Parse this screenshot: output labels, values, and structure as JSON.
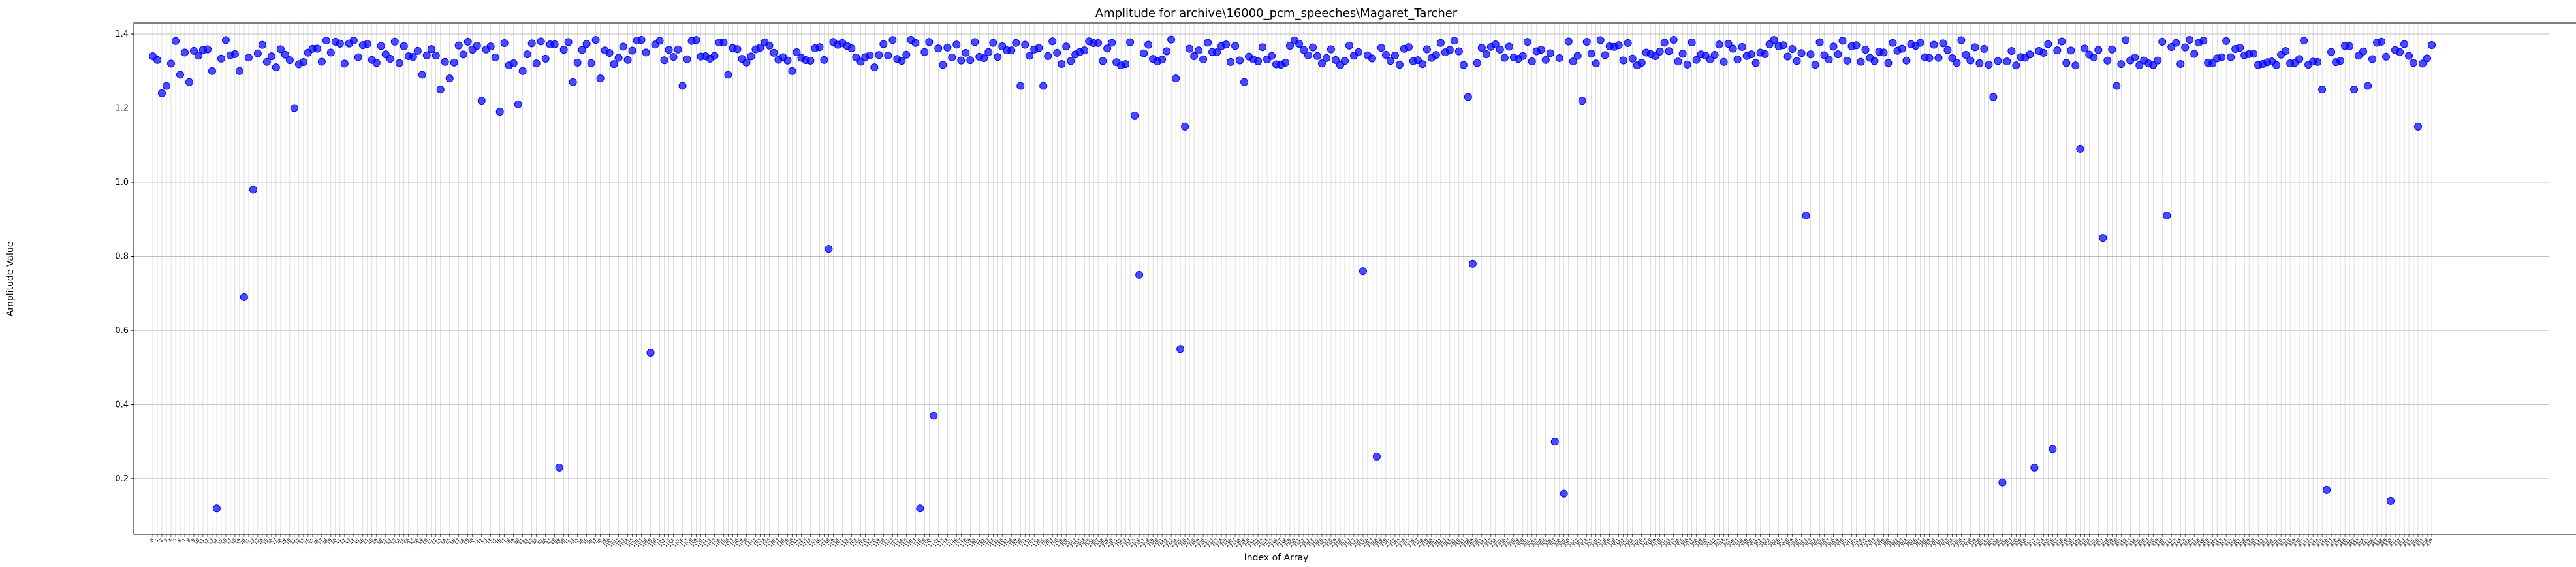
{
  "chart_data": {
    "type": "scatter",
    "title": "Amplitude for archive\\16000_pcm_speeches\\Magaret_Tarcher",
    "xlabel": "Index of Array",
    "ylabel": "Amplitude Value",
    "ylim": [
      0.05,
      1.43
    ],
    "xlim": [
      -1,
      500
    ],
    "yticks": [
      0.2,
      0.4,
      0.6,
      0.8,
      1.0,
      1.2,
      1.4
    ],
    "ytick_labels": [
      "0.2",
      "0.4",
      "0.6",
      "0.8",
      "1.0",
      "1.2",
      "1.4"
    ],
    "grid": true,
    "marker_color": "#0000ff",
    "n_points": 500,
    "baseline": 1.35,
    "outliers": [
      {
        "x": 0,
        "y": 1.34
      },
      {
        "x": 1,
        "y": 1.33
      },
      {
        "x": 2,
        "y": 1.24
      },
      {
        "x": 3,
        "y": 1.26
      },
      {
        "x": 4,
        "y": 1.32
      },
      {
        "x": 6,
        "y": 1.29
      },
      {
        "x": 8,
        "y": 1.27
      },
      {
        "x": 13,
        "y": 1.3
      },
      {
        "x": 14,
        "y": 0.12
      },
      {
        "x": 19,
        "y": 1.3
      },
      {
        "x": 20,
        "y": 0.69
      },
      {
        "x": 22,
        "y": 0.98
      },
      {
        "x": 27,
        "y": 1.31
      },
      {
        "x": 31,
        "y": 1.2
      },
      {
        "x": 42,
        "y": 1.32
      },
      {
        "x": 59,
        "y": 1.29
      },
      {
        "x": 63,
        "y": 1.25
      },
      {
        "x": 65,
        "y": 1.28
      },
      {
        "x": 72,
        "y": 1.22
      },
      {
        "x": 76,
        "y": 1.19
      },
      {
        "x": 80,
        "y": 1.21
      },
      {
        "x": 81,
        "y": 1.3
      },
      {
        "x": 89,
        "y": 0.23
      },
      {
        "x": 92,
        "y": 1.27
      },
      {
        "x": 98,
        "y": 1.28
      },
      {
        "x": 109,
        "y": 0.54
      },
      {
        "x": 116,
        "y": 1.26
      },
      {
        "x": 126,
        "y": 1.29
      },
      {
        "x": 140,
        "y": 1.3
      },
      {
        "x": 148,
        "y": 0.82
      },
      {
        "x": 158,
        "y": 1.31
      },
      {
        "x": 168,
        "y": 0.12
      },
      {
        "x": 171,
        "y": 0.37
      },
      {
        "x": 190,
        "y": 1.26
      },
      {
        "x": 195,
        "y": 1.26
      },
      {
        "x": 215,
        "y": 1.18
      },
      {
        "x": 216,
        "y": 0.75
      },
      {
        "x": 224,
        "y": 1.28
      },
      {
        "x": 225,
        "y": 0.55
      },
      {
        "x": 226,
        "y": 1.15
      },
      {
        "x": 239,
        "y": 1.27
      },
      {
        "x": 265,
        "y": 0.76
      },
      {
        "x": 268,
        "y": 0.26
      },
      {
        "x": 288,
        "y": 1.23
      },
      {
        "x": 289,
        "y": 0.78
      },
      {
        "x": 307,
        "y": 0.3
      },
      {
        "x": 309,
        "y": 0.16
      },
      {
        "x": 313,
        "y": 1.22
      },
      {
        "x": 362,
        "y": 0.91
      },
      {
        "x": 403,
        "y": 1.23
      },
      {
        "x": 405,
        "y": 0.19
      },
      {
        "x": 412,
        "y": 0.23
      },
      {
        "x": 416,
        "y": 0.28
      },
      {
        "x": 422,
        "y": 1.09
      },
      {
        "x": 427,
        "y": 0.85
      },
      {
        "x": 430,
        "y": 1.26
      },
      {
        "x": 441,
        "y": 0.91
      },
      {
        "x": 475,
        "y": 1.25
      },
      {
        "x": 476,
        "y": 0.17
      },
      {
        "x": 482,
        "y": 1.25
      },
      {
        "x": 485,
        "y": 1.26
      },
      {
        "x": 490,
        "y": 0.14
      },
      {
        "x": 496,
        "y": 1.15
      },
      {
        "x": 497,
        "y": 1.32
      },
      {
        "x": 499,
        "y": 1.37
      }
    ]
  }
}
